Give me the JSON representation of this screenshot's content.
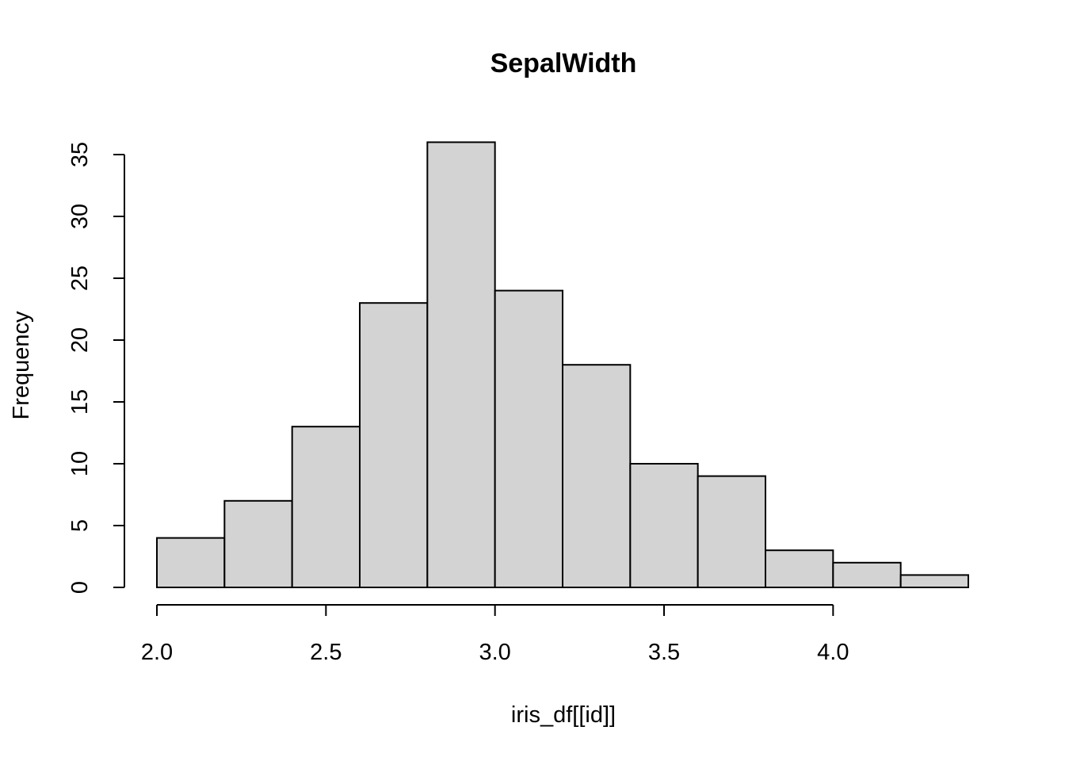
{
  "chart_data": {
    "type": "bar",
    "subtype": "histogram",
    "title": "SepalWidth",
    "xlabel": "iris_df[[id]]",
    "ylabel": "Frequency",
    "bin_edges": [
      2.0,
      2.2,
      2.4,
      2.6,
      2.8,
      3.0,
      3.2,
      3.4,
      3.6,
      3.8,
      4.0,
      4.2,
      4.4
    ],
    "values": [
      4,
      7,
      13,
      23,
      36,
      24,
      18,
      10,
      9,
      3,
      2,
      1
    ],
    "xlim": [
      2.0,
      4.4
    ],
    "ylim": [
      0,
      36
    ],
    "x_ticks": [
      "2.0",
      "2.5",
      "3.0",
      "3.5",
      "4.0"
    ],
    "y_ticks": [
      "0",
      "5",
      "10",
      "15",
      "20",
      "25",
      "30",
      "35"
    ],
    "bar_color": "#d3d3d3",
    "grid": false,
    "legend": "none"
  }
}
